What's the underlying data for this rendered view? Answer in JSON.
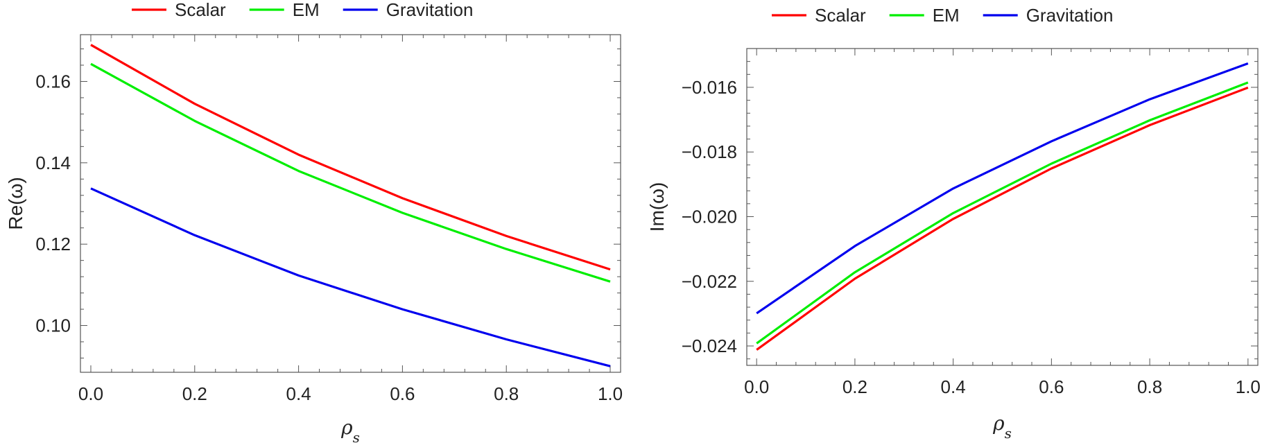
{
  "chart_data": [
    {
      "type": "line",
      "xlabel": "ρ_s",
      "xlabel_main": "ρ",
      "xlabel_sub": "s",
      "ylabel": "Re(ω)",
      "xlim": [
        -0.02,
        1.02
      ],
      "ylim": [
        0.0885,
        0.1715
      ],
      "x_ticks": [
        0.0,
        0.2,
        0.4,
        0.6,
        0.8,
        1.0
      ],
      "x_tick_labels": [
        "0.0",
        "0.2",
        "0.4",
        "0.6",
        "0.8",
        "1.0"
      ],
      "y_ticks": [
        0.1,
        0.12,
        0.14,
        0.16
      ],
      "y_tick_labels": [
        "0.10",
        "0.12",
        "0.14",
        "0.16"
      ],
      "legend_position": "top",
      "x": [
        0.0,
        0.2,
        0.4,
        0.6,
        0.8,
        1.0
      ],
      "series": [
        {
          "name": "Scalar",
          "color": "#ff0000",
          "values": [
            0.169,
            0.1545,
            0.142,
            0.1313,
            0.122,
            0.1138
          ]
        },
        {
          "name": "EM",
          "color": "#00ee00",
          "values": [
            0.1643,
            0.1503,
            0.138,
            0.1277,
            0.1188,
            0.1108
          ]
        },
        {
          "name": "Gravitation",
          "color": "#0000ee",
          "values": [
            0.1337,
            0.1222,
            0.1123,
            0.104,
            0.0966,
            0.09
          ]
        }
      ]
    },
    {
      "type": "line",
      "xlabel": "ρ_s",
      "xlabel_main": "ρ",
      "xlabel_sub": "s",
      "ylabel": "Im(ω)",
      "xlim": [
        -0.02,
        1.02
      ],
      "ylim": [
        -0.0246,
        -0.0148
      ],
      "x_ticks": [
        0.0,
        0.2,
        0.4,
        0.6,
        0.8,
        1.0
      ],
      "x_tick_labels": [
        "0.0",
        "0.2",
        "0.4",
        "0.6",
        "0.8",
        "1.0"
      ],
      "y_ticks": [
        -0.024,
        -0.022,
        -0.02,
        -0.018,
        -0.016
      ],
      "y_tick_labels": [
        "−0.024",
        "−0.022",
        "−0.020",
        "−0.018",
        "−0.016"
      ],
      "legend_position": "top",
      "x": [
        0.0,
        0.2,
        0.4,
        0.6,
        0.8,
        1.0
      ],
      "series": [
        {
          "name": "Scalar",
          "color": "#ff0000",
          "values": [
            -0.02412,
            -0.02192,
            -0.02007,
            -0.01851,
            -0.01717,
            -0.01601
          ]
        },
        {
          "name": "EM",
          "color": "#00ee00",
          "values": [
            -0.02392,
            -0.02172,
            -0.01989,
            -0.01836,
            -0.01702,
            -0.01585
          ]
        },
        {
          "name": "Gravitation",
          "color": "#0000ee",
          "values": [
            -0.02299,
            -0.02091,
            -0.01913,
            -0.01767,
            -0.01637,
            -0.01526
          ]
        }
      ]
    }
  ]
}
